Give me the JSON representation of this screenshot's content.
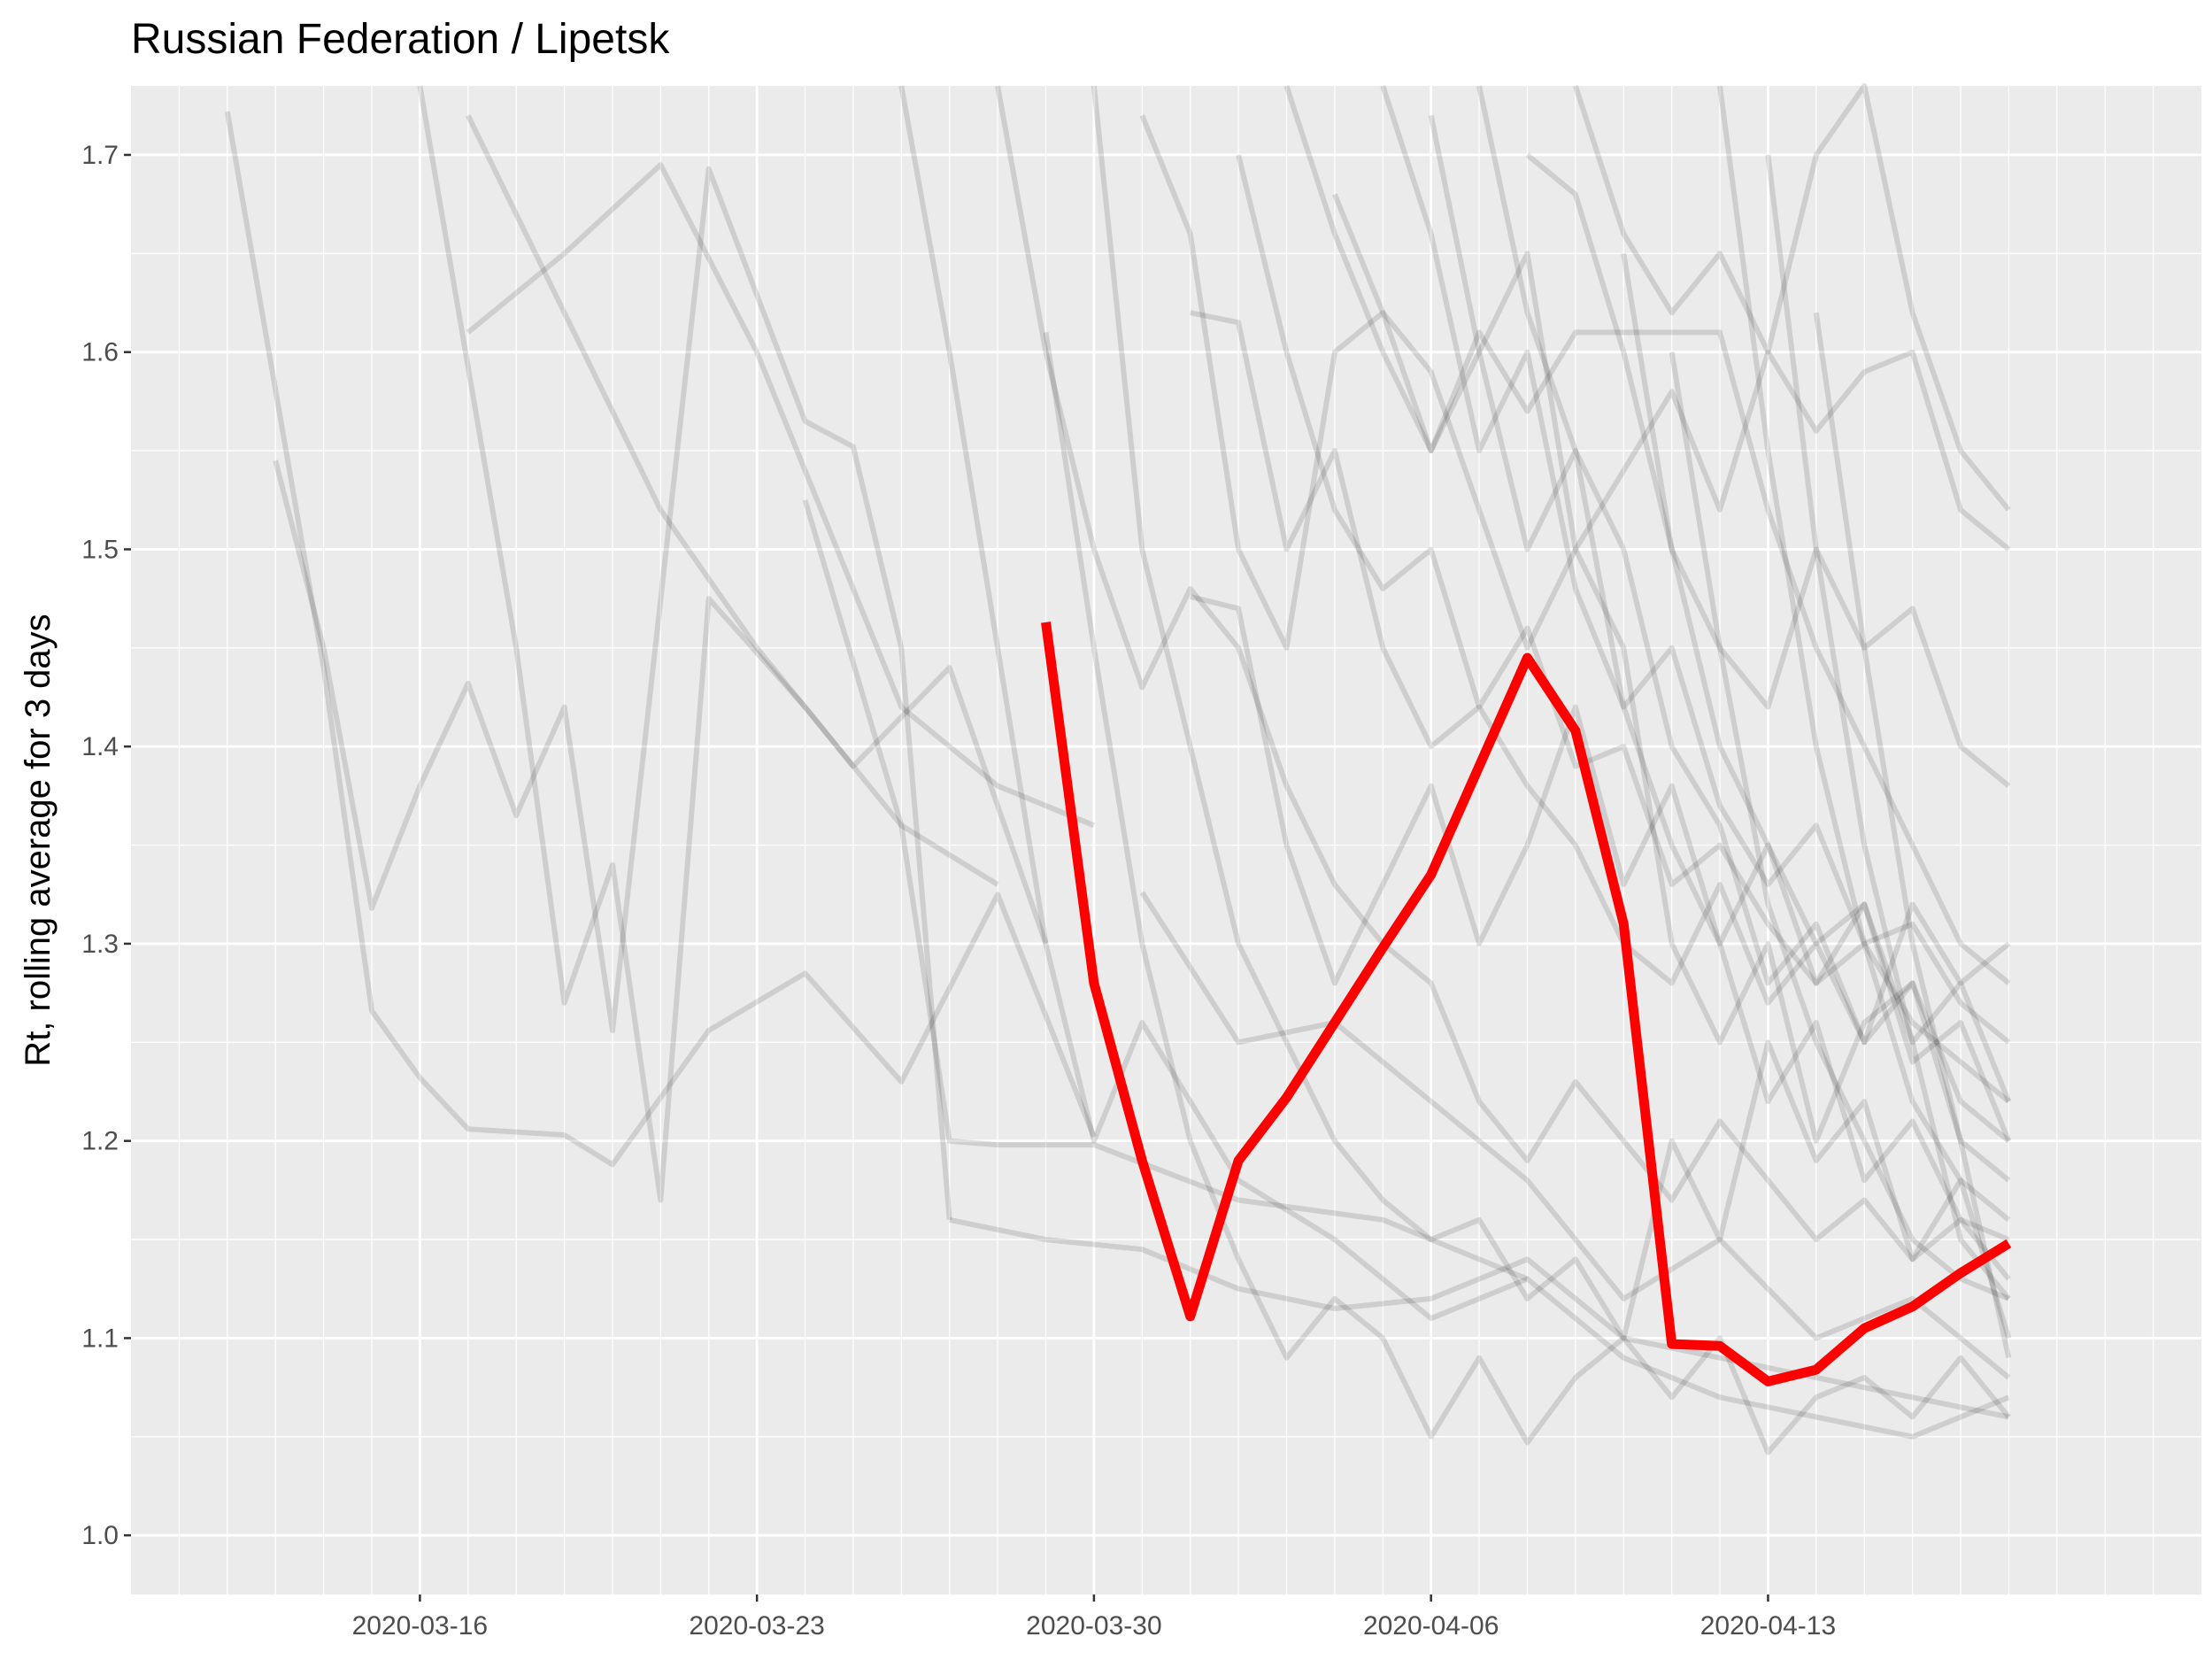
{
  "chart_data": {
    "type": "line",
    "title": "Russian Federation / Lipetsk",
    "xlabel": "",
    "ylabel": "Rt, rolling average for 3 days",
    "x_tick_labels": [
      "2020-03-16",
      "2020-03-23",
      "2020-03-30",
      "2020-04-06",
      "2020-04-13"
    ],
    "y_tick_labels": [
      "1.0",
      "1.1",
      "1.2",
      "1.3",
      "1.4",
      "1.5",
      "1.6",
      "1.7"
    ],
    "xlim": [
      "2020-03-10",
      "2020-04-22"
    ],
    "ylim": [
      0.97,
      1.735
    ],
    "grid": true,
    "legend": "none",
    "colors": {
      "panel_background": "#ebebeb",
      "grid": "#ffffff",
      "highlight": "#ff0000",
      "background_series": "#000000"
    },
    "highlight_series": {
      "name": "Lipetsk",
      "x": [
        "2020-03-29",
        "2020-03-30",
        "2020-03-31",
        "2020-04-01",
        "2020-04-02",
        "2020-04-03",
        "2020-04-04",
        "2020-04-05",
        "2020-04-06",
        "2020-04-07",
        "2020-04-08",
        "2020-04-09",
        "2020-04-10",
        "2020-04-11",
        "2020-04-12",
        "2020-04-13",
        "2020-04-14",
        "2020-04-15",
        "2020-04-16",
        "2020-04-17",
        "2020-04-18"
      ],
      "y": [
        1.463,
        1.28,
        1.19,
        1.111,
        1.19,
        1.222,
        1.26,
        1.298,
        1.335,
        1.39,
        1.445,
        1.408,
        1.31,
        1.097,
        1.096,
        1.078,
        1.084,
        1.105,
        1.116,
        1.133,
        1.148
      ]
    },
    "background_series": [
      {
        "x": [
          "2020-03-12",
          "2020-03-14",
          "2020-03-15",
          "2020-03-16",
          "2020-03-17",
          "2020-03-19",
          "2020-03-20",
          "2020-03-22",
          "2020-03-24",
          "2020-03-26",
          "2020-03-28",
          "2020-03-30"
        ],
        "y": [
          1.722,
          1.44,
          1.266,
          1.232,
          1.206,
          1.203,
          1.188,
          1.256,
          1.285,
          1.23,
          1.325,
          1.202
        ]
      },
      {
        "x": [
          "2020-03-13",
          "2020-03-14",
          "2020-03-15",
          "2020-03-16",
          "2020-03-17",
          "2020-03-18",
          "2020-03-19",
          "2020-03-20",
          "2020-03-22",
          "2020-03-24",
          "2020-03-25",
          "2020-03-26",
          "2020-03-27"
        ],
        "y": [
          1.545,
          1.45,
          1.318,
          1.38,
          1.432,
          1.365,
          1.42,
          1.256,
          1.693,
          1.565,
          1.552,
          1.45,
          1.16
        ]
      },
      {
        "x": [
          "2020-03-17",
          "2020-03-19",
          "2020-03-21",
          "2020-03-23",
          "2020-03-26",
          "2020-03-28",
          "2020-03-30"
        ],
        "y": [
          1.61,
          1.65,
          1.695,
          1.6,
          1.42,
          1.38,
          1.36
        ]
      },
      {
        "x": [
          "2020-03-17",
          "2020-03-19",
          "2020-03-21",
          "2020-03-23",
          "2020-03-25",
          "2020-03-27",
          "2020-03-29"
        ],
        "y": [
          1.72,
          1.62,
          1.52,
          1.45,
          1.39,
          1.44,
          1.3
        ]
      },
      {
        "x": [
          "2020-03-16",
          "2020-03-18",
          "2020-03-19",
          "2020-03-20",
          "2020-03-21",
          "2020-03-22",
          "2020-03-24",
          "2020-03-26",
          "2020-03-28"
        ],
        "y": [
          1.735,
          1.45,
          1.27,
          1.34,
          1.17,
          1.475,
          1.42,
          1.36,
          1.33
        ]
      },
      {
        "x": [
          "2020-03-24",
          "2020-03-26",
          "2020-03-27",
          "2020-03-28",
          "2020-03-29",
          "2020-03-30",
          "2020-04-02",
          "2020-04-05",
          "2020-04-08"
        ],
        "y": [
          1.525,
          1.36,
          1.2,
          1.198,
          1.198,
          1.198,
          1.17,
          1.16,
          1.13
        ]
      },
      {
        "x": [
          "2020-03-27",
          "2020-03-29",
          "2020-03-31",
          "2020-04-02",
          "2020-04-04",
          "2020-04-06",
          "2020-04-08",
          "2020-04-10",
          "2020-04-12",
          "2020-04-14",
          "2020-04-16",
          "2020-04-18"
        ],
        "y": [
          1.16,
          1.15,
          1.145,
          1.125,
          1.115,
          1.12,
          1.14,
          1.1,
          1.09,
          1.08,
          1.07,
          1.06
        ]
      },
      {
        "x": [
          "2020-03-26",
          "2020-03-27",
          "2020-03-28",
          "2020-03-29",
          "2020-03-30",
          "2020-03-31",
          "2020-04-02",
          "2020-04-04",
          "2020-04-06",
          "2020-04-08",
          "2020-04-10",
          "2020-04-12",
          "2020-04-14",
          "2020-04-16",
          "2020-04-18"
        ],
        "y": [
          1.735,
          1.6,
          1.45,
          1.3,
          1.2,
          1.26,
          1.18,
          1.15,
          1.11,
          1.13,
          1.09,
          1.07,
          1.06,
          1.05,
          1.07
        ]
      },
      {
        "x": [
          "2020-03-29",
          "2020-03-30",
          "2020-03-31",
          "2020-04-01",
          "2020-04-02",
          "2020-04-03",
          "2020-04-04",
          "2020-04-05",
          "2020-04-06",
          "2020-04-07",
          "2020-04-08",
          "2020-04-09",
          "2020-04-10",
          "2020-04-11",
          "2020-04-12",
          "2020-04-13",
          "2020-04-14",
          "2020-04-15",
          "2020-04-16",
          "2020-04-17",
          "2020-04-18"
        ],
        "y": [
          1.61,
          1.45,
          1.3,
          1.2,
          1.14,
          1.09,
          1.12,
          1.1,
          1.05,
          1.09,
          1.047,
          1.08,
          1.1,
          1.07,
          1.1,
          1.042,
          1.07,
          1.08,
          1.06,
          1.09,
          1.06
        ]
      },
      {
        "x": [
          "2020-03-30",
          "2020-03-31",
          "2020-04-01",
          "2020-04-02",
          "2020-04-03",
          "2020-04-04",
          "2020-04-05",
          "2020-04-06",
          "2020-04-07",
          "2020-04-08",
          "2020-04-09",
          "2020-04-10",
          "2020-04-11",
          "2020-04-12",
          "2020-04-13",
          "2020-04-14",
          "2020-04-15",
          "2020-04-16",
          "2020-04-17",
          "2020-04-18"
        ],
        "y": [
          1.735,
          1.5,
          1.4,
          1.3,
          1.25,
          1.2,
          1.17,
          1.15,
          1.16,
          1.12,
          1.14,
          1.1,
          1.2,
          1.15,
          1.25,
          1.19,
          1.22,
          1.14,
          1.18,
          1.16
        ]
      },
      {
        "x": [
          "2020-03-31",
          "2020-04-01",
          "2020-04-02",
          "2020-04-03",
          "2020-04-04",
          "2020-04-05",
          "2020-04-06",
          "2020-04-07",
          "2020-04-08",
          "2020-04-09",
          "2020-04-10",
          "2020-04-11",
          "2020-04-12",
          "2020-04-13",
          "2020-04-14",
          "2020-04-15",
          "2020-04-16",
          "2020-04-17",
          "2020-04-18"
        ],
        "y": [
          1.72,
          1.66,
          1.5,
          1.45,
          1.6,
          1.62,
          1.55,
          1.6,
          1.65,
          1.5,
          1.45,
          1.3,
          1.25,
          1.3,
          1.2,
          1.26,
          1.28,
          1.22,
          1.2
        ]
      },
      {
        "x": [
          "2020-04-01",
          "2020-04-02",
          "2020-04-03",
          "2020-04-04",
          "2020-04-05",
          "2020-04-06",
          "2020-04-07",
          "2020-04-08",
          "2020-04-09",
          "2020-04-10",
          "2020-04-11",
          "2020-04-12",
          "2020-04-13",
          "2020-04-14",
          "2020-04-15",
          "2020-04-16",
          "2020-04-17",
          "2020-04-18"
        ],
        "y": [
          1.62,
          1.615,
          1.5,
          1.55,
          1.45,
          1.4,
          1.42,
          1.38,
          1.35,
          1.3,
          1.28,
          1.33,
          1.27,
          1.3,
          1.25,
          1.32,
          1.28,
          1.3
        ]
      },
      {
        "x": [
          "2020-04-02",
          "2020-04-03",
          "2020-04-04",
          "2020-04-05",
          "2020-04-06",
          "2020-04-07",
          "2020-04-08",
          "2020-04-09",
          "2020-04-10",
          "2020-04-11",
          "2020-04-12",
          "2020-04-13",
          "2020-04-14",
          "2020-04-15",
          "2020-04-16",
          "2020-04-17",
          "2020-04-18"
        ],
        "y": [
          1.7,
          1.6,
          1.52,
          1.48,
          1.5,
          1.42,
          1.46,
          1.39,
          1.4,
          1.33,
          1.35,
          1.31,
          1.28,
          1.3,
          1.26,
          1.24,
          1.22
        ]
      },
      {
        "x": [
          "2020-04-03",
          "2020-04-04",
          "2020-04-05",
          "2020-04-06",
          "2020-04-07",
          "2020-04-08",
          "2020-04-09",
          "2020-04-10",
          "2020-04-11",
          "2020-04-12",
          "2020-04-13",
          "2020-04-14",
          "2020-04-15",
          "2020-04-16",
          "2020-04-17",
          "2020-04-18"
        ],
        "y": [
          1.735,
          1.66,
          1.6,
          1.55,
          1.61,
          1.57,
          1.61,
          1.61,
          1.61,
          1.61,
          1.52,
          1.45,
          1.4,
          1.35,
          1.3,
          1.28
        ]
      },
      {
        "x": [
          "2020-04-04",
          "2020-04-05",
          "2020-04-06",
          "2020-04-07",
          "2020-04-08",
          "2020-04-09",
          "2020-04-10",
          "2020-04-11",
          "2020-04-12",
          "2020-04-13",
          "2020-04-14",
          "2020-04-15",
          "2020-04-16",
          "2020-04-17",
          "2020-04-18"
        ],
        "y": [
          1.68,
          1.62,
          1.59,
          1.52,
          1.45,
          1.5,
          1.54,
          1.58,
          1.52,
          1.6,
          1.56,
          1.59,
          1.6,
          1.52,
          1.5
        ]
      },
      {
        "x": [
          "2020-04-05",
          "2020-04-06",
          "2020-04-07",
          "2020-04-08",
          "2020-04-09",
          "2020-04-10",
          "2020-04-11",
          "2020-04-12",
          "2020-04-13",
          "2020-04-14",
          "2020-04-15",
          "2020-04-16",
          "2020-04-17",
          "2020-04-18"
        ],
        "y": [
          1.735,
          1.66,
          1.55,
          1.6,
          1.48,
          1.42,
          1.45,
          1.37,
          1.33,
          1.36,
          1.3,
          1.31,
          1.27,
          1.25
        ]
      },
      {
        "x": [
          "2020-04-06",
          "2020-04-07",
          "2020-04-08",
          "2020-04-09",
          "2020-04-10",
          "2020-04-11",
          "2020-04-12",
          "2020-04-13",
          "2020-04-14",
          "2020-04-15",
          "2020-04-16",
          "2020-04-17",
          "2020-04-18"
        ],
        "y": [
          1.72,
          1.6,
          1.5,
          1.55,
          1.42,
          1.35,
          1.3,
          1.22,
          1.26,
          1.18,
          1.21,
          1.16,
          1.15
        ]
      },
      {
        "x": [
          "2020-04-07",
          "2020-04-08",
          "2020-04-09",
          "2020-04-10",
          "2020-04-11",
          "2020-04-12",
          "2020-04-13",
          "2020-04-14",
          "2020-04-15",
          "2020-04-16",
          "2020-04-17",
          "2020-04-18"
        ],
        "y": [
          1.735,
          1.62,
          1.55,
          1.5,
          1.4,
          1.36,
          1.28,
          1.31,
          1.25,
          1.28,
          1.2,
          1.18
        ]
      },
      {
        "x": [
          "2020-04-08",
          "2020-04-09",
          "2020-04-10",
          "2020-04-11",
          "2020-04-12",
          "2020-04-13",
          "2020-04-14",
          "2020-04-15",
          "2020-04-16",
          "2020-04-17",
          "2020-04-18"
        ],
        "y": [
          1.7,
          1.68,
          1.6,
          1.5,
          1.45,
          1.42,
          1.5,
          1.45,
          1.47,
          1.4,
          1.38
        ]
      },
      {
        "x": [
          "2020-04-09",
          "2020-04-10",
          "2020-04-11",
          "2020-04-12",
          "2020-04-13",
          "2020-04-14",
          "2020-04-15",
          "2020-04-16",
          "2020-04-17",
          "2020-04-18"
        ],
        "y": [
          1.735,
          1.66,
          1.62,
          1.65,
          1.6,
          1.7,
          1.735,
          1.62,
          1.55,
          1.52
        ]
      },
      {
        "x": [
          "2020-04-10",
          "2020-04-11",
          "2020-04-12",
          "2020-04-13",
          "2020-04-14",
          "2020-04-15",
          "2020-04-16",
          "2020-04-17",
          "2020-04-18"
        ],
        "y": [
          1.65,
          1.5,
          1.4,
          1.35,
          1.3,
          1.32,
          1.24,
          1.26,
          1.2
        ]
      },
      {
        "x": [
          "2020-04-11",
          "2020-04-12",
          "2020-04-13",
          "2020-04-14",
          "2020-04-15",
          "2020-04-16",
          "2020-04-17",
          "2020-04-18"
        ],
        "y": [
          1.6,
          1.45,
          1.32,
          1.25,
          1.2,
          1.15,
          1.13,
          1.12
        ]
      },
      {
        "x": [
          "2020-04-12",
          "2020-04-13",
          "2020-04-14",
          "2020-04-15",
          "2020-04-16",
          "2020-04-17",
          "2020-04-18"
        ],
        "y": [
          1.735,
          1.55,
          1.4,
          1.3,
          1.22,
          1.18,
          1.1
        ]
      },
      {
        "x": [
          "2020-04-13",
          "2020-04-14",
          "2020-04-15",
          "2020-04-16",
          "2020-04-17",
          "2020-04-18"
        ],
        "y": [
          1.7,
          1.5,
          1.35,
          1.25,
          1.15,
          1.12
        ]
      },
      {
        "x": [
          "2020-04-14",
          "2020-04-15",
          "2020-04-16",
          "2020-04-17",
          "2020-04-18"
        ],
        "y": [
          1.62,
          1.45,
          1.3,
          1.2,
          1.09
        ]
      },
      {
        "x": [
          "2020-03-28",
          "2020-03-29",
          "2020-03-30",
          "2020-03-31",
          "2020-04-01",
          "2020-04-02",
          "2020-04-03",
          "2020-04-04",
          "2020-04-05",
          "2020-04-06",
          "2020-04-07",
          "2020-04-08",
          "2020-04-09",
          "2020-04-10",
          "2020-04-11",
          "2020-04-12",
          "2020-04-13",
          "2020-04-14",
          "2020-04-15",
          "2020-04-16",
          "2020-04-17",
          "2020-04-18"
        ],
        "y": [
          1.735,
          1.6,
          1.5,
          1.43,
          1.48,
          1.45,
          1.38,
          1.33,
          1.3,
          1.28,
          1.22,
          1.19,
          1.23,
          1.2,
          1.17,
          1.21,
          1.18,
          1.15,
          1.17,
          1.14,
          1.16,
          1.13
        ]
      },
      {
        "x": [
          "2020-03-31",
          "2020-04-02",
          "2020-04-04",
          "2020-04-06",
          "2020-04-08",
          "2020-04-10",
          "2020-04-12",
          "2020-04-14",
          "2020-04-16",
          "2020-04-18"
        ],
        "y": [
          1.326,
          1.25,
          1.26,
          1.22,
          1.18,
          1.12,
          1.15,
          1.1,
          1.12,
          1.08
        ]
      },
      {
        "x": [
          "2020-04-01",
          "2020-04-02",
          "2020-04-03",
          "2020-04-04",
          "2020-04-05",
          "2020-04-06",
          "2020-04-07",
          "2020-04-08",
          "2020-04-09",
          "2020-04-10",
          "2020-04-11",
          "2020-04-12",
          "2020-04-13",
          "2020-04-14",
          "2020-04-15",
          "2020-04-16",
          "2020-04-17",
          "2020-04-18"
        ],
        "y": [
          1.476,
          1.47,
          1.35,
          1.28,
          1.33,
          1.38,
          1.3,
          1.35,
          1.42,
          1.33,
          1.38,
          1.3,
          1.35,
          1.28,
          1.32,
          1.25,
          1.28,
          1.22
        ]
      }
    ]
  }
}
